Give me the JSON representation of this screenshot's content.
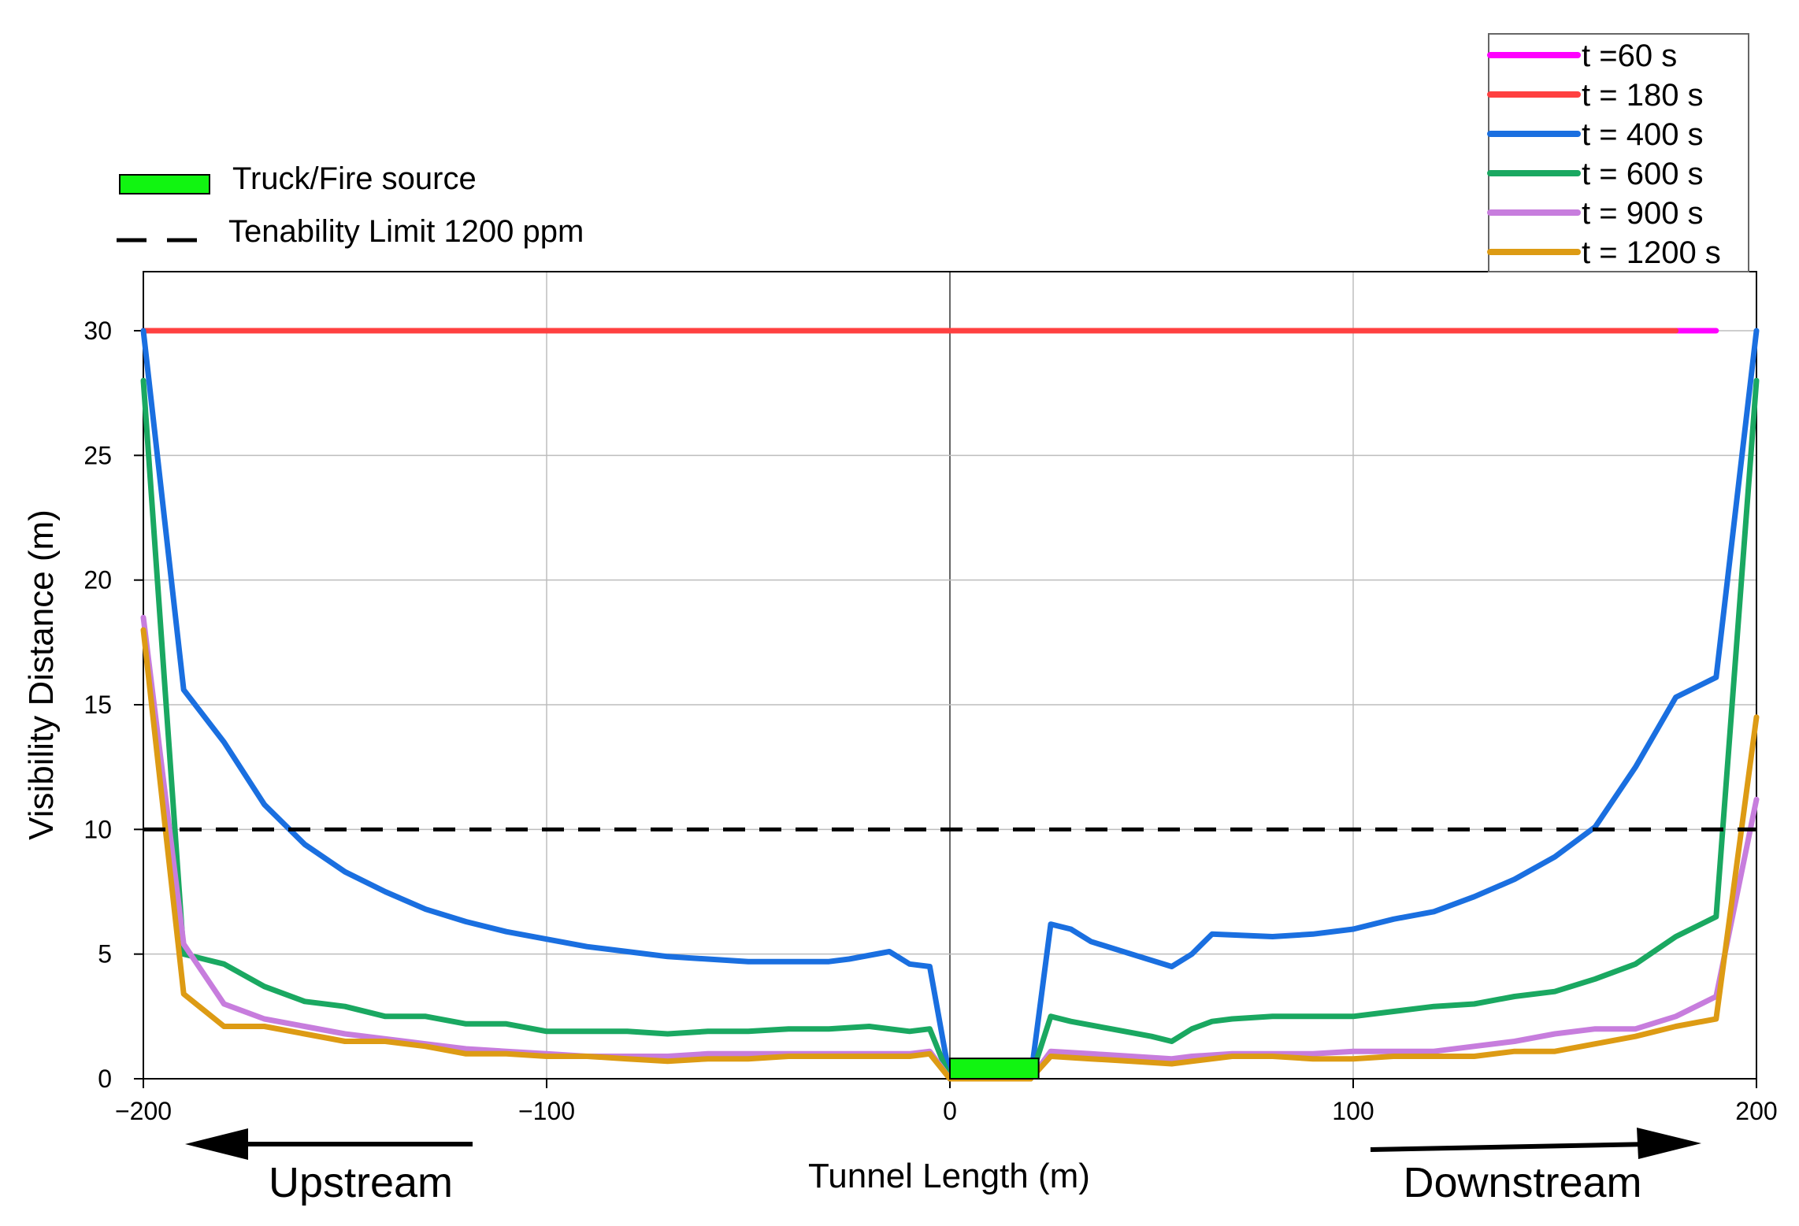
{
  "chart_data": {
    "type": "line",
    "xlabel": "Tunnel Length (m)",
    "ylabel": "Visibility Distance (m)",
    "xlim": [
      -200,
      200
    ],
    "ylim": [
      0,
      30
    ],
    "xticks": [
      -200,
      -100,
      0,
      100,
      200
    ],
    "xtick_labels": [
      "−200",
      "−100",
      "0",
      "100",
      "200"
    ],
    "yticks": [
      0,
      5,
      10,
      15,
      20,
      25,
      30
    ],
    "grid": true,
    "legend_placement": "top-right",
    "series": [
      {
        "name": "t =60 s",
        "color": "#ff00ff",
        "points": [
          [
            180,
            30
          ],
          [
            190,
            30
          ]
        ]
      },
      {
        "name": "t = 180 s",
        "color": "#ff4040",
        "points": [
          [
            -200,
            30
          ],
          [
            180,
            30
          ]
        ]
      },
      {
        "name": "t = 400 s",
        "color": "#1a6fe0",
        "points": [
          [
            -200,
            30
          ],
          [
            -190,
            15.6
          ],
          [
            -180,
            13.5
          ],
          [
            -170,
            11
          ],
          [
            -160,
            9.4
          ],
          [
            -150,
            8.3
          ],
          [
            -140,
            7.5
          ],
          [
            -130,
            6.8
          ],
          [
            -120,
            6.3
          ],
          [
            -110,
            5.9
          ],
          [
            -100,
            5.6
          ],
          [
            -90,
            5.3
          ],
          [
            -80,
            5.1
          ],
          [
            -70,
            4.9
          ],
          [
            -60,
            4.8
          ],
          [
            -50,
            4.7
          ],
          [
            -40,
            4.7
          ],
          [
            -30,
            4.7
          ],
          [
            -25,
            4.8
          ],
          [
            -15,
            5.1
          ],
          [
            -10,
            4.6
          ],
          [
            -5,
            4.5
          ],
          [
            0,
            0
          ],
          [
            20,
            0
          ],
          [
            25,
            6.2
          ],
          [
            30,
            6
          ],
          [
            35,
            5.5
          ],
          [
            45,
            5
          ],
          [
            55,
            4.5
          ],
          [
            60,
            5
          ],
          [
            65,
            5.8
          ],
          [
            80,
            5.7
          ],
          [
            90,
            5.8
          ],
          [
            100,
            6
          ],
          [
            110,
            6.4
          ],
          [
            120,
            6.7
          ],
          [
            130,
            7.3
          ],
          [
            140,
            8
          ],
          [
            150,
            8.9
          ],
          [
            160,
            10.1
          ],
          [
            170,
            12.5
          ],
          [
            180,
            15.3
          ],
          [
            190,
            16.1
          ],
          [
            200,
            30
          ]
        ]
      },
      {
        "name": "t = 600 s",
        "color": "#1aa861",
        "points": [
          [
            -200,
            28
          ],
          [
            -190,
            5
          ],
          [
            -180,
            4.6
          ],
          [
            -170,
            3.7
          ],
          [
            -160,
            3.1
          ],
          [
            -150,
            2.9
          ],
          [
            -140,
            2.5
          ],
          [
            -130,
            2.5
          ],
          [
            -120,
            2.2
          ],
          [
            -110,
            2.2
          ],
          [
            -100,
            1.9
          ],
          [
            -90,
            1.9
          ],
          [
            -80,
            1.9
          ],
          [
            -70,
            1.8
          ],
          [
            -60,
            1.9
          ],
          [
            -50,
            1.9
          ],
          [
            -40,
            2
          ],
          [
            -30,
            2
          ],
          [
            -20,
            2.1
          ],
          [
            -10,
            1.9
          ],
          [
            -5,
            2
          ],
          [
            0,
            0
          ],
          [
            20,
            0
          ],
          [
            25,
            2.5
          ],
          [
            30,
            2.3
          ],
          [
            40,
            2
          ],
          [
            50,
            1.7
          ],
          [
            55,
            1.5
          ],
          [
            60,
            2
          ],
          [
            65,
            2.3
          ],
          [
            70,
            2.4
          ],
          [
            80,
            2.5
          ],
          [
            90,
            2.5
          ],
          [
            100,
            2.5
          ],
          [
            110,
            2.7
          ],
          [
            120,
            2.9
          ],
          [
            130,
            3
          ],
          [
            140,
            3.3
          ],
          [
            150,
            3.5
          ],
          [
            160,
            4
          ],
          [
            170,
            4.6
          ],
          [
            180,
            5.7
          ],
          [
            190,
            6.5
          ],
          [
            200,
            28
          ]
        ]
      },
      {
        "name": "t = 900 s",
        "color": "#c77ddd",
        "points": [
          [
            -200,
            18.5
          ],
          [
            -190,
            5.4
          ],
          [
            -180,
            3
          ],
          [
            -170,
            2.4
          ],
          [
            -160,
            2.1
          ],
          [
            -150,
            1.8
          ],
          [
            -140,
            1.6
          ],
          [
            -130,
            1.4
          ],
          [
            -120,
            1.2
          ],
          [
            -110,
            1.1
          ],
          [
            -100,
            1
          ],
          [
            -90,
            0.9
          ],
          [
            -80,
            0.9
          ],
          [
            -70,
            0.9
          ],
          [
            -60,
            1
          ],
          [
            -50,
            1
          ],
          [
            -40,
            1
          ],
          [
            -30,
            1
          ],
          [
            -20,
            1
          ],
          [
            -10,
            1
          ],
          [
            -5,
            1.1
          ],
          [
            0,
            0
          ],
          [
            20,
            0
          ],
          [
            25,
            1.1
          ],
          [
            35,
            1
          ],
          [
            45,
            0.9
          ],
          [
            55,
            0.8
          ],
          [
            60,
            0.9
          ],
          [
            70,
            1
          ],
          [
            80,
            1
          ],
          [
            90,
            1
          ],
          [
            100,
            1.1
          ],
          [
            110,
            1.1
          ],
          [
            120,
            1.1
          ],
          [
            130,
            1.3
          ],
          [
            140,
            1.5
          ],
          [
            150,
            1.8
          ],
          [
            160,
            2
          ],
          [
            170,
            2
          ],
          [
            180,
            2.5
          ],
          [
            190,
            3.3
          ],
          [
            200,
            11.2
          ]
        ]
      },
      {
        "name": "t = 1200 s",
        "color": "#dd9b14",
        "points": [
          [
            -200,
            18
          ],
          [
            -190,
            3.4
          ],
          [
            -180,
            2.1
          ],
          [
            -170,
            2.1
          ],
          [
            -160,
            1.8
          ],
          [
            -150,
            1.5
          ],
          [
            -140,
            1.5
          ],
          [
            -130,
            1.3
          ],
          [
            -120,
            1
          ],
          [
            -110,
            1
          ],
          [
            -100,
            0.9
          ],
          [
            -90,
            0.9
          ],
          [
            -80,
            0.8
          ],
          [
            -70,
            0.7
          ],
          [
            -60,
            0.8
          ],
          [
            -50,
            0.8
          ],
          [
            -40,
            0.9
          ],
          [
            -30,
            0.9
          ],
          [
            -20,
            0.9
          ],
          [
            -10,
            0.9
          ],
          [
            -5,
            1
          ],
          [
            0,
            0
          ],
          [
            20,
            0
          ],
          [
            25,
            0.9
          ],
          [
            35,
            0.8
          ],
          [
            45,
            0.7
          ],
          [
            55,
            0.6
          ],
          [
            60,
            0.7
          ],
          [
            70,
            0.9
          ],
          [
            80,
            0.9
          ],
          [
            90,
            0.8
          ],
          [
            100,
            0.8
          ],
          [
            110,
            0.9
          ],
          [
            120,
            0.9
          ],
          [
            130,
            0.9
          ],
          [
            140,
            1.1
          ],
          [
            150,
            1.1
          ],
          [
            160,
            1.4
          ],
          [
            170,
            1.7
          ],
          [
            180,
            2.1
          ],
          [
            190,
            2.4
          ],
          [
            200,
            14.5
          ]
        ]
      }
    ],
    "tenability_limit": {
      "label": "Tenability Limit 1200 ppm",
      "y": 10,
      "color": "#000000"
    },
    "fire_source": {
      "label": "Truck/Fire source",
      "x_start": 0,
      "x_end": 22,
      "y_bottom": 0,
      "y_top": 0.5,
      "color": "#11f511"
    },
    "annotations": {
      "upstream": "Upstream",
      "downstream": "Downstream"
    }
  }
}
